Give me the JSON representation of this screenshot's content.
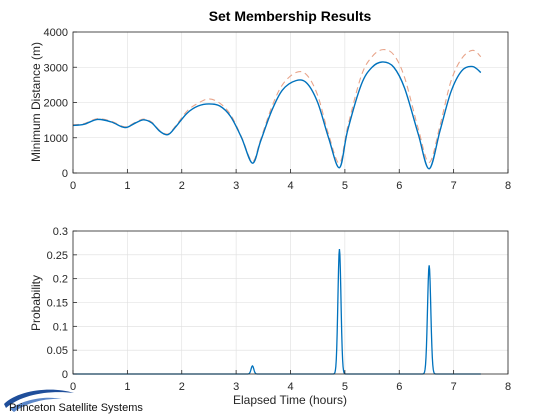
{
  "title": "Set Membership Results",
  "logo": {
    "text": "Princeton Satellite Systems"
  },
  "colors": {
    "series_solid": "#0072BD",
    "series_dashed": "#E8A48A",
    "grid": "#DEDEDE",
    "axis": "#262626"
  },
  "chart_data": [
    {
      "type": "line",
      "title": "Set Membership Results",
      "xlabel": "",
      "ylabel": "Minimum Distance (m)",
      "xlim": [
        0,
        8
      ],
      "ylim": [
        0,
        4000
      ],
      "xticks": [
        "0",
        "1",
        "2",
        "3",
        "4",
        "5",
        "6",
        "7",
        "8"
      ],
      "yticks": [
        "0",
        "1000",
        "2000",
        "3000",
        "4000"
      ],
      "grid": true,
      "series": [
        {
          "style": "solid",
          "points": [
            [
              0,
              1350
            ],
            [
              0.2,
              1380
            ],
            [
              0.45,
              1520
            ],
            [
              0.7,
              1450
            ],
            [
              0.9,
              1310
            ],
            [
              1.0,
              1300
            ],
            [
              1.15,
              1420
            ],
            [
              1.3,
              1510
            ],
            [
              1.45,
              1420
            ],
            [
              1.6,
              1180
            ],
            [
              1.75,
              1090
            ],
            [
              1.9,
              1330
            ],
            [
              2.1,
              1700
            ],
            [
              2.3,
              1900
            ],
            [
              2.5,
              1960
            ],
            [
              2.7,
              1900
            ],
            [
              2.9,
              1600
            ],
            [
              3.1,
              1000
            ],
            [
              3.3,
              280
            ],
            [
              3.45,
              900
            ],
            [
              3.65,
              1750
            ],
            [
              3.85,
              2350
            ],
            [
              4.1,
              2620
            ],
            [
              4.3,
              2550
            ],
            [
              4.5,
              2000
            ],
            [
              4.7,
              1000
            ],
            [
              4.9,
              150
            ],
            [
              5.05,
              1200
            ],
            [
              5.3,
              2500
            ],
            [
              5.5,
              3000
            ],
            [
              5.7,
              3150
            ],
            [
              5.9,
              3000
            ],
            [
              6.1,
              2400
            ],
            [
              6.35,
              1100
            ],
            [
              6.55,
              120
            ],
            [
              6.75,
              1200
            ],
            [
              6.95,
              2300
            ],
            [
              7.15,
              2900
            ],
            [
              7.35,
              3020
            ],
            [
              7.5,
              2850
            ]
          ]
        },
        {
          "style": "dashed",
          "points": [
            [
              0,
              1370
            ],
            [
              0.2,
              1400
            ],
            [
              0.45,
              1540
            ],
            [
              0.7,
              1470
            ],
            [
              0.9,
              1330
            ],
            [
              1.0,
              1320
            ],
            [
              1.15,
              1440
            ],
            [
              1.3,
              1530
            ],
            [
              1.45,
              1440
            ],
            [
              1.6,
              1200
            ],
            [
              1.75,
              1110
            ],
            [
              1.9,
              1360
            ],
            [
              2.1,
              1760
            ],
            [
              2.3,
              1980
            ],
            [
              2.5,
              2100
            ],
            [
              2.7,
              1980
            ],
            [
              2.9,
              1650
            ],
            [
              3.1,
              1020
            ],
            [
              3.3,
              330
            ],
            [
              3.45,
              950
            ],
            [
              3.65,
              1850
            ],
            [
              3.85,
              2500
            ],
            [
              4.1,
              2850
            ],
            [
              4.3,
              2780
            ],
            [
              4.5,
              2200
            ],
            [
              4.7,
              1100
            ],
            [
              4.9,
              280
            ],
            [
              5.05,
              1300
            ],
            [
              5.3,
              2750
            ],
            [
              5.5,
              3300
            ],
            [
              5.7,
              3500
            ],
            [
              5.9,
              3350
            ],
            [
              6.1,
              2700
            ],
            [
              6.35,
              1250
            ],
            [
              6.55,
              300
            ],
            [
              6.75,
              1350
            ],
            [
              6.95,
              2600
            ],
            [
              7.15,
              3250
            ],
            [
              7.35,
              3480
            ],
            [
              7.5,
              3300
            ]
          ]
        }
      ]
    },
    {
      "type": "line",
      "title": "",
      "xlabel": "Elapsed Time (hours)",
      "ylabel": "Probability",
      "xlim": [
        0,
        8
      ],
      "ylim": [
        0,
        0.3
      ],
      "xticks": [
        "0",
        "1",
        "2",
        "3",
        "4",
        "5",
        "6",
        "7",
        "8"
      ],
      "yticks": [
        "0",
        "0.05",
        "0.1",
        "0.15",
        "0.2",
        "0.25",
        "0.3"
      ],
      "grid": true,
      "baseline": {
        "x_start": 0,
        "x_end": 7.5,
        "value": 0
      },
      "series": [
        {
          "style": "solid",
          "peaks": [
            {
              "x": 3.3,
              "y": 0.017,
              "width": 0.025
            },
            {
              "x": 4.9,
              "y": 0.262,
              "width": 0.028
            },
            {
              "x": 6.55,
              "y": 0.228,
              "width": 0.03
            }
          ]
        }
      ]
    }
  ]
}
